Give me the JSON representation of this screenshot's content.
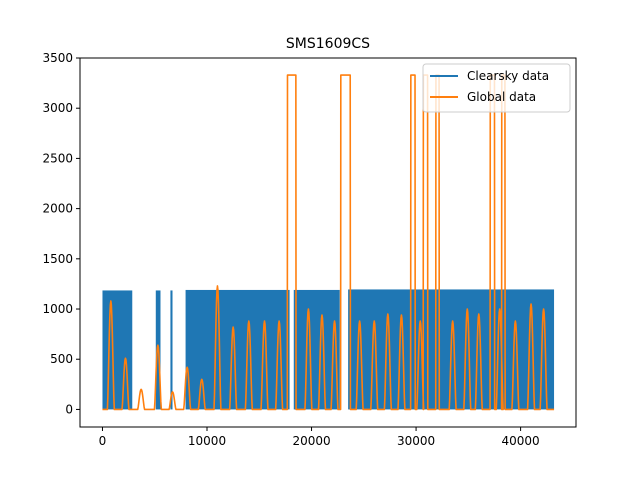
{
  "chart_data": {
    "type": "line",
    "title": "SMS1609CS",
    "xlabel": "",
    "ylabel": "",
    "xlim": [
      -2150,
      45300
    ],
    "ylim": [
      -175,
      3500
    ],
    "x_ticks": [
      0,
      10000,
      20000,
      30000,
      40000
    ],
    "y_ticks": [
      0,
      500,
      1000,
      1500,
      2000,
      2500,
      3000,
      3500
    ],
    "grid": false,
    "legend_position": "top-right",
    "series": [
      {
        "name": "Clearsky data",
        "color": "#1f77b4",
        "description_blocks": [
          {
            "x_start": 0,
            "x_end": 2850,
            "low": 0,
            "high": 1185
          },
          {
            "x_start": 5100,
            "x_end": 5550,
            "low": 0,
            "high": 1185
          },
          {
            "x_start": 6500,
            "x_end": 6700,
            "low": 0,
            "high": 1185
          },
          {
            "x_start": 7950,
            "x_end": 17900,
            "low": 0,
            "high": 1190
          },
          {
            "x_start": 18300,
            "x_end": 22700,
            "low": 0,
            "high": 1190
          },
          {
            "x_start": 23500,
            "x_end": 43200,
            "low": 0,
            "high": 1195
          }
        ]
      },
      {
        "name": "Global data",
        "color": "#ff7f0e",
        "peaks": [
          {
            "x": 800,
            "y": 1080
          },
          {
            "x": 2200,
            "y": 510
          },
          {
            "x": 3700,
            "y": 200
          },
          {
            "x": 5300,
            "y": 640
          },
          {
            "x": 6700,
            "y": 175
          },
          {
            "x": 8100,
            "y": 420
          },
          {
            "x": 9500,
            "y": 300
          },
          {
            "x": 11000,
            "y": 1230
          },
          {
            "x": 12500,
            "y": 820
          },
          {
            "x": 14000,
            "y": 880
          },
          {
            "x": 15500,
            "y": 880
          },
          {
            "x": 16900,
            "y": 880
          },
          {
            "x": 19700,
            "y": 1000
          },
          {
            "x": 21000,
            "y": 940
          },
          {
            "x": 22200,
            "y": 880
          },
          {
            "x": 24600,
            "y": 880
          },
          {
            "x": 26000,
            "y": 880
          },
          {
            "x": 27300,
            "y": 950
          },
          {
            "x": 28600,
            "y": 940
          },
          {
            "x": 30400,
            "y": 880
          },
          {
            "x": 33500,
            "y": 880
          },
          {
            "x": 34900,
            "y": 1000
          },
          {
            "x": 36000,
            "y": 950
          },
          {
            "x": 38000,
            "y": 1000
          },
          {
            "x": 39500,
            "y": 880
          },
          {
            "x": 41000,
            "y": 1050
          },
          {
            "x": 42200,
            "y": 1000
          }
        ],
        "saturated_segments": [
          {
            "x_start": 17700,
            "x_end": 18500,
            "y": 3330
          },
          {
            "x_start": 22800,
            "x_end": 23700,
            "y": 3330
          },
          {
            "x_start": 29500,
            "x_end": 29900,
            "y": 3330
          },
          {
            "x_start": 30700,
            "x_end": 31100,
            "y": 3330
          },
          {
            "x_start": 31900,
            "x_end": 32200,
            "y": 3330
          },
          {
            "x_start": 37100,
            "x_end": 37500,
            "y": 3330
          },
          {
            "x_start": 38200,
            "x_end": 38500,
            "y": 3330
          }
        ]
      }
    ]
  }
}
